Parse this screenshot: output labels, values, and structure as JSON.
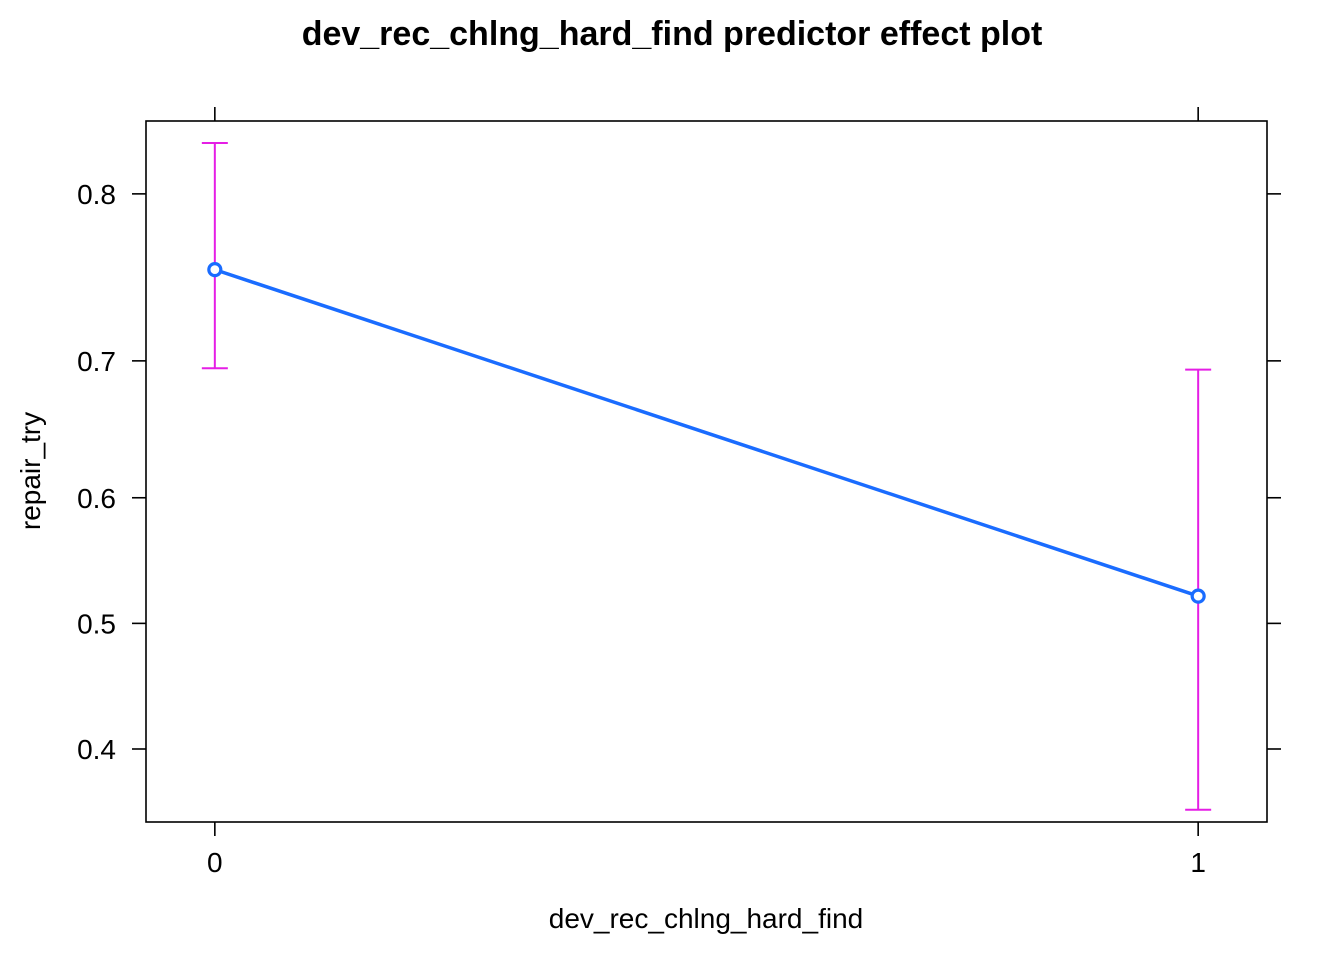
{
  "chart_data": {
    "type": "line",
    "title": "dev_rec_chlng_hard_find predictor effect plot",
    "xlabel": "dev_rec_chlng_hard_find",
    "ylabel": "repair_try",
    "x_ticks": [
      "0",
      "1"
    ],
    "y_ticks": [
      "0.4",
      "0.5",
      "0.6",
      "0.7",
      "0.8"
    ],
    "ylim": [
      0.345,
      0.835
    ],
    "x_domain": [
      -0.07,
      1.07
    ],
    "scale": "logit",
    "grid": false,
    "legend": "none",
    "series": [
      {
        "x": [
          0,
          1
        ],
        "values": [
          0.758,
          0.522
        ],
        "lower": [
          0.695,
          0.354
        ],
        "upper": [
          0.825,
          0.694
        ]
      }
    ],
    "colors": {
      "line": "#1a6cff",
      "errorbar": "#e51ee5",
      "axis": "#000000"
    }
  }
}
